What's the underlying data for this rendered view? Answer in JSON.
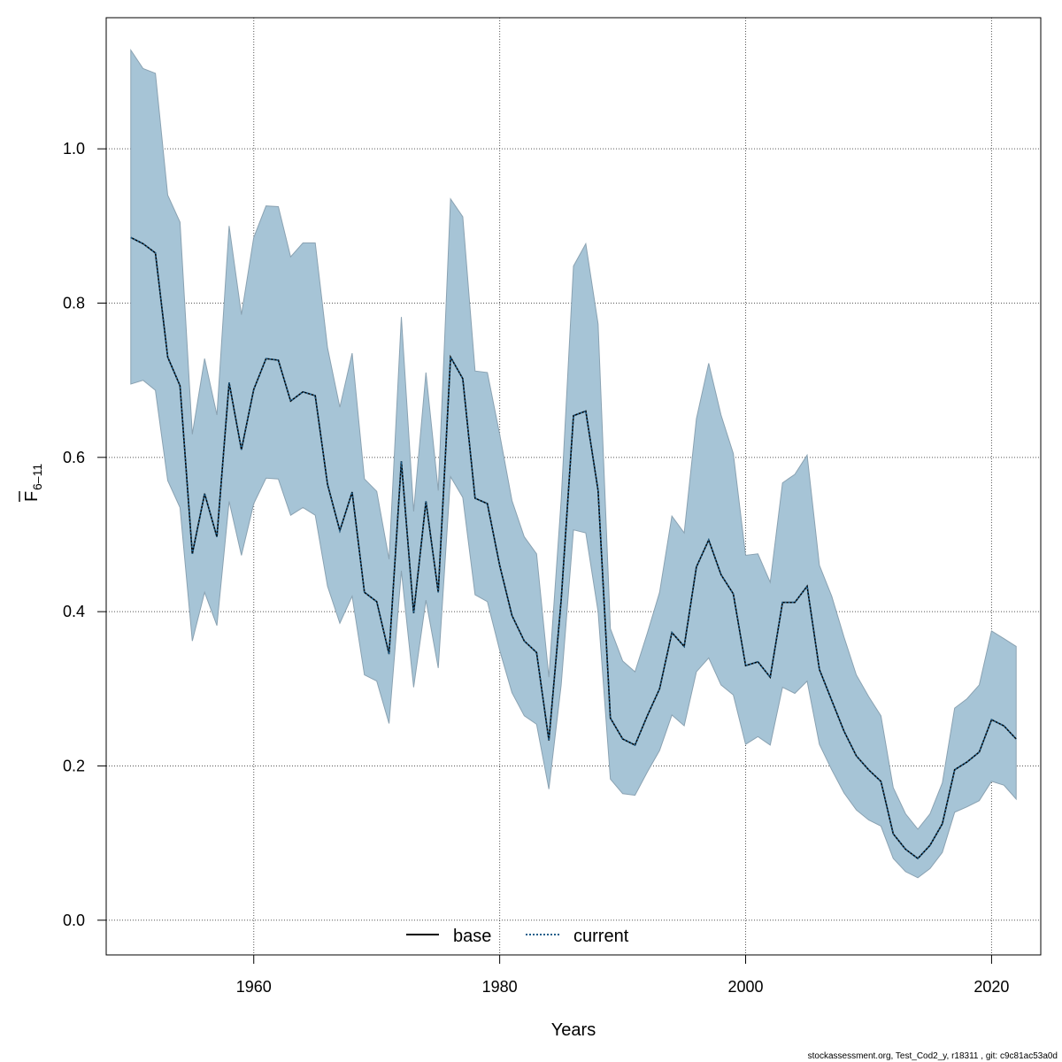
{
  "chart_data": {
    "type": "area",
    "xlabel": "Years",
    "ylabel_main": "F",
    "ylabel_sub": "6–11",
    "xlim": [
      1948,
      2024
    ],
    "ylim": [
      -0.045,
      1.17
    ],
    "x_ticks": [
      1960,
      1980,
      2000,
      2020
    ],
    "y_ticks": [
      0.0,
      0.2,
      0.4,
      0.6,
      0.8,
      1.0
    ],
    "y_tick_labels": [
      "0.0",
      "0.2",
      "0.4",
      "0.6",
      "0.8",
      "1.0"
    ],
    "grid": true,
    "legend_position": "bottom-center",
    "colors": {
      "band": "#a6c4d6",
      "band_outline": "#8aa2b2",
      "base": "#000000",
      "current": "#1f5f8b",
      "grid": "#555555"
    },
    "x": [
      1950,
      1951,
      1952,
      1953,
      1954,
      1955,
      1956,
      1957,
      1958,
      1959,
      1960,
      1961,
      1962,
      1963,
      1964,
      1965,
      1966,
      1967,
      1968,
      1969,
      1970,
      1971,
      1972,
      1973,
      1974,
      1975,
      1976,
      1977,
      1978,
      1979,
      1980,
      1981,
      1982,
      1983,
      1984,
      1985,
      1986,
      1987,
      1988,
      1989,
      1990,
      1991,
      1992,
      1993,
      1994,
      1995,
      1996,
      1997,
      1998,
      1999,
      2000,
      2001,
      2002,
      2003,
      2004,
      2005,
      2006,
      2007,
      2008,
      2009,
      2010,
      2011,
      2012,
      2013,
      2014,
      2015,
      2016,
      2017,
      2018,
      2019,
      2020,
      2021,
      2022
    ],
    "series": [
      {
        "name": "base",
        "line_style": "solid",
        "values": [
          0.885,
          0.877,
          0.865,
          0.73,
          0.693,
          0.475,
          0.553,
          0.497,
          0.697,
          0.61,
          0.688,
          0.728,
          0.726,
          0.673,
          0.685,
          0.68,
          0.565,
          0.505,
          0.555,
          0.425,
          0.413,
          0.345,
          0.595,
          0.398,
          0.543,
          0.425,
          0.73,
          0.702,
          0.547,
          0.54,
          0.46,
          0.395,
          0.362,
          0.347,
          0.233,
          0.415,
          0.654,
          0.66,
          0.557,
          0.262,
          0.235,
          0.227,
          0.265,
          0.3,
          0.373,
          0.355,
          0.458,
          0.493,
          0.448,
          0.423,
          0.33,
          0.335,
          0.315,
          0.412,
          0.412,
          0.433,
          0.325,
          0.285,
          0.245,
          0.213,
          0.195,
          0.18,
          0.112,
          0.092,
          0.08,
          0.097,
          0.125,
          0.195,
          0.205,
          0.218,
          0.26,
          0.252,
          0.235
        ]
      },
      {
        "name": "current",
        "line_style": "dotted",
        "values": [
          0.885,
          0.877,
          0.865,
          0.73,
          0.693,
          0.475,
          0.553,
          0.497,
          0.697,
          0.61,
          0.688,
          0.728,
          0.726,
          0.673,
          0.685,
          0.68,
          0.565,
          0.505,
          0.555,
          0.425,
          0.413,
          0.345,
          0.595,
          0.398,
          0.543,
          0.425,
          0.73,
          0.702,
          0.547,
          0.54,
          0.46,
          0.395,
          0.362,
          0.347,
          0.233,
          0.415,
          0.654,
          0.66,
          0.557,
          0.262,
          0.235,
          0.227,
          0.265,
          0.3,
          0.373,
          0.355,
          0.458,
          0.493,
          0.448,
          0.423,
          0.33,
          0.335,
          0.315,
          0.412,
          0.412,
          0.433,
          0.325,
          0.285,
          0.245,
          0.213,
          0.195,
          0.18,
          0.112,
          0.092,
          0.08,
          0.097,
          0.125,
          0.195,
          0.205,
          0.218,
          0.26,
          0.252,
          0.235
        ]
      }
    ],
    "band_upper": [
      1.128,
      1.104,
      1.098,
      0.94,
      0.905,
      0.63,
      0.728,
      0.655,
      0.9,
      0.785,
      0.885,
      0.926,
      0.925,
      0.86,
      0.878,
      0.878,
      0.742,
      0.665,
      0.735,
      0.572,
      0.556,
      0.468,
      0.782,
      0.53,
      0.71,
      0.557,
      0.935,
      0.912,
      0.712,
      0.71,
      0.63,
      0.544,
      0.497,
      0.475,
      0.315,
      0.545,
      0.848,
      0.877,
      0.773,
      0.378,
      0.336,
      0.322,
      0.372,
      0.425,
      0.524,
      0.502,
      0.65,
      0.722,
      0.655,
      0.605,
      0.473,
      0.475,
      0.438,
      0.567,
      0.578,
      0.603,
      0.46,
      0.42,
      0.367,
      0.318,
      0.29,
      0.265,
      0.172,
      0.138,
      0.118,
      0.138,
      0.178,
      0.275,
      0.287,
      0.305,
      0.375,
      0.365,
      0.355
    ],
    "band_lower": [
      0.695,
      0.7,
      0.687,
      0.57,
      0.535,
      0.362,
      0.425,
      0.382,
      0.543,
      0.473,
      0.54,
      0.573,
      0.572,
      0.525,
      0.535,
      0.525,
      0.433,
      0.385,
      0.42,
      0.318,
      0.31,
      0.255,
      0.453,
      0.302,
      0.415,
      0.327,
      0.575,
      0.548,
      0.422,
      0.413,
      0.35,
      0.295,
      0.265,
      0.254,
      0.17,
      0.305,
      0.506,
      0.502,
      0.4,
      0.183,
      0.164,
      0.162,
      0.192,
      0.22,
      0.266,
      0.252,
      0.322,
      0.34,
      0.305,
      0.292,
      0.228,
      0.238,
      0.227,
      0.302,
      0.294,
      0.31,
      0.228,
      0.195,
      0.165,
      0.143,
      0.13,
      0.122,
      0.08,
      0.063,
      0.055,
      0.067,
      0.088,
      0.14,
      0.147,
      0.155,
      0.18,
      0.175,
      0.157
    ],
    "footer": "stockassessment.org, Test_Cod2_y, r18311 , git: c9c81ac53a0d"
  }
}
